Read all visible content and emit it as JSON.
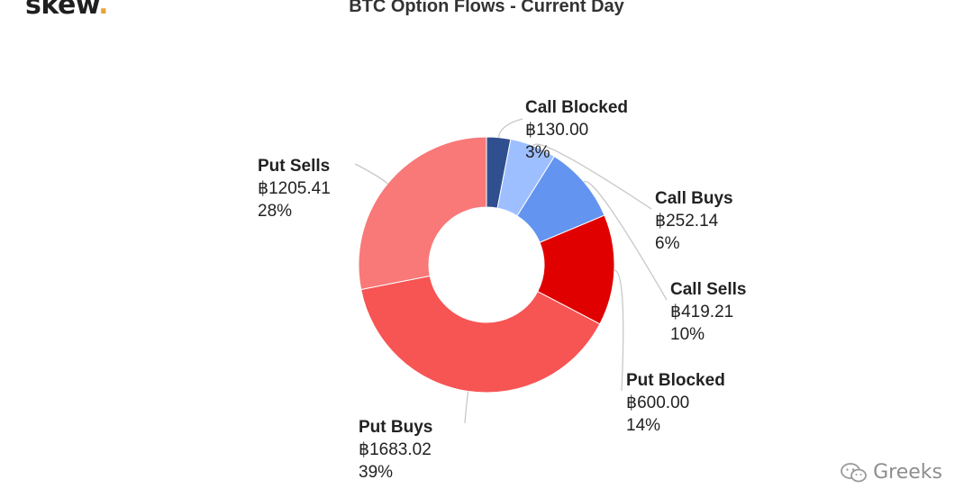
{
  "brand": {
    "name": "skew",
    "dot": "."
  },
  "chart_data": {
    "type": "pie",
    "donut": true,
    "title": "BTC Option Flows - Current Day",
    "currency": "฿",
    "slices": [
      {
        "name": "Call Blocked",
        "value": 130.0,
        "display": "฿130.00",
        "percent": "3%",
        "color": "#2f4f8f"
      },
      {
        "name": "Call Buys",
        "value": 252.14,
        "display": "฿252.14",
        "percent": "6%",
        "color": "#9ebfff"
      },
      {
        "name": "Call Sells",
        "value": 419.21,
        "display": "฿419.21",
        "percent": "10%",
        "color": "#6294f0"
      },
      {
        "name": "Put Blocked",
        "value": 600.0,
        "display": "฿600.00",
        "percent": "14%",
        "color": "#e00000"
      },
      {
        "name": "Put Buys",
        "value": 1683.02,
        "display": "฿1683.02",
        "percent": "39%",
        "color": "#f75454"
      },
      {
        "name": "Put Sells",
        "value": 1205.41,
        "display": "฿1205.41",
        "percent": "28%",
        "color": "#f97878"
      }
    ]
  },
  "watermark": {
    "text": "Greeks"
  }
}
